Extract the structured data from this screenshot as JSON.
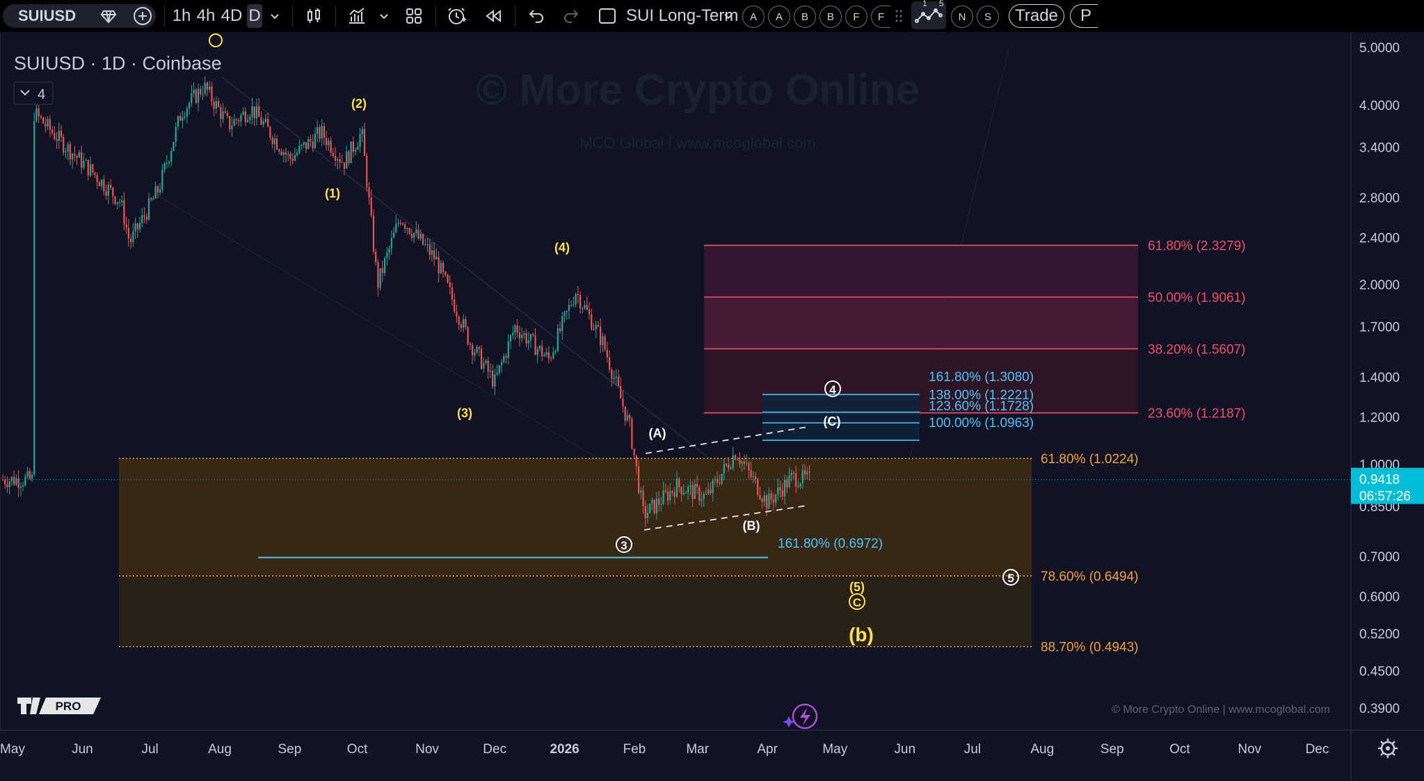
{
  "toolbar": {
    "symbol": "SUIUSD",
    "intervals": [
      "1h",
      "4h",
      "4D",
      "D"
    ],
    "selected_interval": "D",
    "layout_name": "SUI Long-Term",
    "alert_chips": [
      "A",
      "A",
      "B",
      "B",
      "F",
      "F"
    ],
    "right_chips": [
      "N",
      "S"
    ],
    "indicator_counts": [
      "1",
      "5"
    ],
    "trade_label": "Trade",
    "cut_label": "P"
  },
  "legend": {
    "title": "SUIUSD · 1D · Coinbase",
    "collapse_count": "4"
  },
  "watermark": {
    "title": "© More Crypto Online",
    "subtitle": "MCO Global   |   www.mcoglobal.com",
    "footer": "© More Crypto Online   |   www.mcoglobal.com"
  },
  "logo": {
    "text": "PRO"
  },
  "price_axis": {
    "ticks": [
      "5.0000",
      "4.0000",
      "3.4000",
      "2.8000",
      "2.4000",
      "2.0000",
      "1.7000",
      "1.4000",
      "1.2000",
      "1.0000",
      "0.8500",
      "0.7000",
      "0.6000",
      "0.5200",
      "0.4500",
      "0.3900"
    ],
    "current_price": "0.9418",
    "countdown": "06:57:26",
    "accent_color": "#00bcd4"
  },
  "time_axis": {
    "ticks": [
      "May",
      "Jun",
      "Jul",
      "Aug",
      "Sep",
      "Oct",
      "Nov",
      "Dec",
      "2026",
      "Feb",
      "Mar",
      "Apr",
      "May",
      "Jun",
      "Jul",
      "Aug",
      "Sep",
      "Oct",
      "Nov",
      "Dec"
    ]
  },
  "chart_data": {
    "type": "candlestick",
    "title": "SUIUSD · 1D · Coinbase",
    "scale": "log",
    "ylim": [
      0.36,
      5.1
    ],
    "x_range": [
      "2025-05",
      "2026-12"
    ],
    "last_price": 0.9418,
    "approx_close_path": [
      {
        "date": "2025-05-10",
        "close": 3.9
      },
      {
        "date": "2025-05-25",
        "close": 3.4
      },
      {
        "date": "2025-06-05",
        "close": 3.1
      },
      {
        "date": "2025-06-18",
        "close": 2.75
      },
      {
        "date": "2025-06-22",
        "close": 2.35
      },
      {
        "date": "2025-07-05",
        "close": 2.9
      },
      {
        "date": "2025-07-15",
        "close": 3.9
      },
      {
        "date": "2025-07-25",
        "close": 4.3
      },
      {
        "date": "2025-08-05",
        "close": 3.7
      },
      {
        "date": "2025-08-15",
        "close": 3.95
      },
      {
        "date": "2025-09-01",
        "close": 3.25
      },
      {
        "date": "2025-09-15",
        "close": 3.6
      },
      {
        "date": "2025-09-25",
        "close": 3.2
      },
      {
        "date": "2025-10-03",
        "close": 3.6
      },
      {
        "date": "2025-10-10",
        "close": 2.0
      },
      {
        "date": "2025-10-20",
        "close": 2.6
      },
      {
        "date": "2025-11-05",
        "close": 2.2
      },
      {
        "date": "2025-11-20",
        "close": 1.6
      },
      {
        "date": "2025-12-01",
        "close": 1.37
      },
      {
        "date": "2025-12-10",
        "close": 1.7
      },
      {
        "date": "2025-12-25",
        "close": 1.5
      },
      {
        "date": "2026-01-06",
        "close": 1.95
      },
      {
        "date": "2026-01-18",
        "close": 1.6
      },
      {
        "date": "2026-01-30",
        "close": 1.15
      },
      {
        "date": "2026-02-05",
        "close": 0.82
      },
      {
        "date": "2026-02-20",
        "close": 0.92
      },
      {
        "date": "2026-03-05",
        "close": 0.88
      },
      {
        "date": "2026-03-18",
        "close": 1.05
      },
      {
        "date": "2026-04-01",
        "close": 0.86
      },
      {
        "date": "2026-04-12",
        "close": 0.95
      },
      {
        "date": "2026-04-20",
        "close": 0.9418
      }
    ],
    "fib_pink": [
      {
        "label": "61.80% (2.3279)",
        "price": 2.3279
      },
      {
        "label": "50.00% (1.9061)",
        "price": 1.9061
      },
      {
        "label": "38.20% (1.5607)",
        "price": 1.5607
      },
      {
        "label": "23.60% (1.2187)",
        "price": 1.2187
      }
    ],
    "fib_blue": [
      {
        "label": "161.80% (1.3080)",
        "price": 1.308
      },
      {
        "label": "138.00% (1.2221)",
        "price": 1.2221
      },
      {
        "label": "123.60% (1.1728)",
        "price": 1.1728
      },
      {
        "label": "100.00% (1.0963)",
        "price": 1.0963
      }
    ],
    "fib_orange": [
      {
        "label": "61.80% (1.0224)",
        "price": 1.0224
      },
      {
        "label": "78.60% (0.6494)",
        "price": 0.6494
      },
      {
        "label": "88.70% (0.4943)",
        "price": 0.4943
      }
    ],
    "cyan_target": {
      "label": "161.80% (0.6972)",
      "price": 0.6972
    },
    "wave_labels": [
      {
        "text": "(1)",
        "color": "yellow"
      },
      {
        "text": "(2)",
        "color": "yellow"
      },
      {
        "text": "(3)",
        "color": "yellow"
      },
      {
        "text": "(4)",
        "color": "yellow"
      },
      {
        "text": "(5)",
        "color": "yellow"
      },
      {
        "text": "(A)",
        "color": "white"
      },
      {
        "text": "(B)",
        "color": "white"
      },
      {
        "text": "(C)",
        "color": "white"
      },
      {
        "text": "(b)",
        "color": "yellow"
      },
      {
        "text": "3",
        "color": "white",
        "circled": true
      },
      {
        "text": "4",
        "color": "white",
        "circled": true
      },
      {
        "text": "5",
        "color": "white",
        "circled": true
      },
      {
        "text": "C",
        "color": "yellow",
        "circled": true
      }
    ]
  }
}
